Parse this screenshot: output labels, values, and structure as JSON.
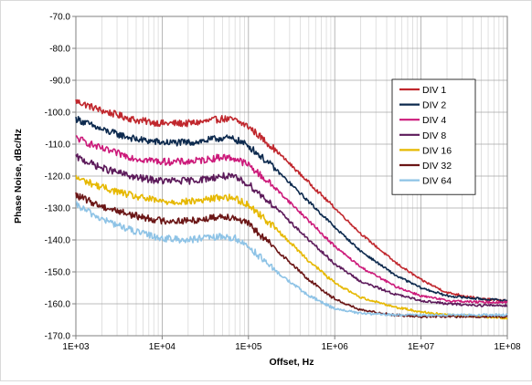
{
  "chart_data": {
    "type": "line",
    "title": "",
    "xlabel": "Offset,  Hz",
    "ylabel": "Phase Noise, dBc/Hz",
    "x_scale": "log",
    "xlim": [
      1000,
      100000000
    ],
    "ylim": [
      -170,
      -70
    ],
    "x_ticks": [
      "1E+03",
      "1E+04",
      "1E+05",
      "1E+06",
      "1E+07",
      "1E+08"
    ],
    "y_ticks": [
      "-70.0",
      "-80.0",
      "-90.0",
      "-100.0",
      "-110.0",
      "-120.0",
      "-130.0",
      "-140.0",
      "-150.0",
      "-160.0",
      "-170.0"
    ],
    "grid": true,
    "legend_position": "top-right",
    "x": [
      1000,
      2000,
      5000,
      10000,
      20000,
      30000,
      50000,
      70000,
      100000,
      200000,
      500000,
      1000000,
      2000000,
      5000000,
      10000000,
      20000000,
      50000000,
      100000000
    ],
    "series": [
      {
        "name": "DIV 1",
        "color": "#c0272d",
        "values": [
          -96.5,
          -99.5,
          -102.5,
          -103.5,
          -103.5,
          -103,
          -102,
          -102.5,
          -104.5,
          -111.5,
          -122,
          -130,
          -138,
          -147,
          -152.5,
          -156.5,
          -158.5,
          -159
        ]
      },
      {
        "name": "DIV 2",
        "color": "#0d2a4e",
        "values": [
          -102,
          -105.5,
          -108.5,
          -109.5,
          -109.5,
          -109,
          -108,
          -108.5,
          -110.5,
          -117.5,
          -128,
          -136,
          -143.5,
          -151,
          -155,
          -157.5,
          -158.5,
          -159
        ]
      },
      {
        "name": "DIV 4",
        "color": "#cc1a7a",
        "values": [
          -108,
          -111.5,
          -114.5,
          -115.5,
          -115.5,
          -115,
          -114,
          -114.5,
          -116.5,
          -123.5,
          -134,
          -142,
          -148.5,
          -154.5,
          -157.5,
          -159,
          -159.5,
          -159.5
        ]
      },
      {
        "name": "DIV 8",
        "color": "#5c1a5a",
        "values": [
          -114,
          -117.5,
          -120.5,
          -121.5,
          -121.5,
          -121,
          -120,
          -120.5,
          -122.5,
          -129.5,
          -140,
          -147.5,
          -153,
          -157,
          -159,
          -160,
          -160.5,
          -160.5
        ]
      },
      {
        "name": "DIV 16",
        "color": "#e6b800",
        "values": [
          -120.5,
          -123.5,
          -126.5,
          -128,
          -128,
          -127.5,
          -126.5,
          -127,
          -129,
          -136,
          -146.5,
          -153.5,
          -158,
          -161,
          -162.5,
          -163.5,
          -164,
          -164.5
        ]
      },
      {
        "name": "DIV 32",
        "color": "#6b1616",
        "values": [
          -126,
          -129.5,
          -132.5,
          -134,
          -134,
          -133.5,
          -132.5,
          -133,
          -135,
          -142.5,
          -152.5,
          -158.5,
          -162,
          -163.5,
          -164,
          -164,
          -164,
          -164
        ]
      },
      {
        "name": "DIV 64",
        "color": "#8ec3e6",
        "values": [
          -129,
          -133.5,
          -137.5,
          -139.5,
          -140,
          -139.5,
          -139,
          -139.5,
          -142,
          -149.5,
          -157.5,
          -161.5,
          -163,
          -163.5,
          -163.5,
          -163.5,
          -163.5,
          -163.5
        ]
      }
    ]
  }
}
